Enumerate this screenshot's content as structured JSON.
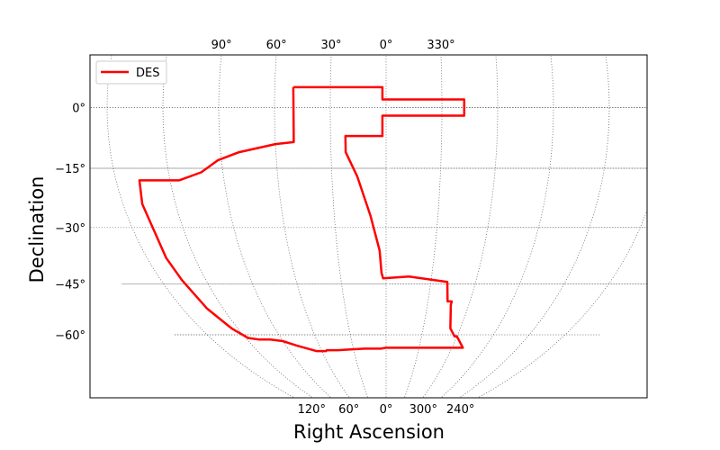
{
  "chart_data": {
    "type": "line",
    "projection": "McBryde-Thomas flat-polar quartic",
    "xlabel": "Right Ascension",
    "ylabel": "Declination",
    "bottom_ticks": [
      {
        "ra": 120,
        "label": "120°"
      },
      {
        "ra": 60,
        "label": "60°"
      },
      {
        "ra": 0,
        "label": "0°"
      },
      {
        "ra": 300,
        "label": "300°"
      },
      {
        "ra": 240,
        "label": "240°"
      }
    ],
    "top_ticks": [
      {
        "ra": 90,
        "label": "90°"
      },
      {
        "ra": 60,
        "label": "60°"
      },
      {
        "ra": 30,
        "label": "30°"
      },
      {
        "ra": 0,
        "label": "0°"
      },
      {
        "ra": 330,
        "label": "330°"
      }
    ],
    "dec_ticks": [
      {
        "dec": 0,
        "label": "0°"
      },
      {
        "dec": -15,
        "label": "−15°"
      },
      {
        "dec": -30,
        "label": "−30°"
      },
      {
        "dec": -45,
        "label": "−45°"
      },
      {
        "dec": -60,
        "label": "−60°"
      }
    ],
    "grid": true,
    "legend": {
      "position": "top-left"
    },
    "series": [
      {
        "name": "DES",
        "color": "#ff0000",
        "ra_dec": [
          [
            50,
            5
          ],
          [
            2,
            5
          ],
          [
            2,
            2
          ],
          [
            318,
            2
          ],
          [
            318,
            -2
          ],
          [
            2,
            -2
          ],
          [
            2,
            -7
          ],
          [
            22,
            -7
          ],
          [
            22,
            -11
          ],
          [
            16,
            -17
          ],
          [
            9,
            -27
          ],
          [
            4,
            -36
          ],
          [
            3,
            -42
          ],
          [
            2,
            -43.5
          ],
          [
            345,
            -43
          ],
          [
            319,
            -44.5
          ],
          [
            316,
            -50
          ],
          [
            313,
            -50
          ],
          [
            313,
            -51
          ],
          [
            308,
            -58
          ],
          [
            302,
            -60.5
          ],
          [
            300,
            -60.5
          ],
          [
            290,
            -64.2
          ],
          [
            0,
            -64.2
          ],
          [
            5,
            -64.5
          ],
          [
            20,
            -64.5
          ],
          [
            45,
            -65
          ],
          [
            55,
            -65
          ],
          [
            56,
            -65.3
          ],
          [
            65,
            -65.3
          ],
          [
            80,
            -63.5
          ],
          [
            90,
            -62
          ],
          [
            100,
            -61.5
          ],
          [
            110,
            -61.5
          ],
          [
            118,
            -61
          ],
          [
            125,
            -58
          ],
          [
            132,
            -52
          ],
          [
            136,
            -44
          ],
          [
            138,
            -38
          ],
          [
            139,
            -24
          ],
          [
            137,
            -18
          ],
          [
            115,
            -18
          ],
          [
            102,
            -16
          ],
          [
            92,
            -13
          ],
          [
            80,
            -11
          ],
          [
            60,
            -9
          ],
          [
            50,
            -8.5
          ],
          [
            50,
            5
          ]
        ]
      }
    ]
  }
}
